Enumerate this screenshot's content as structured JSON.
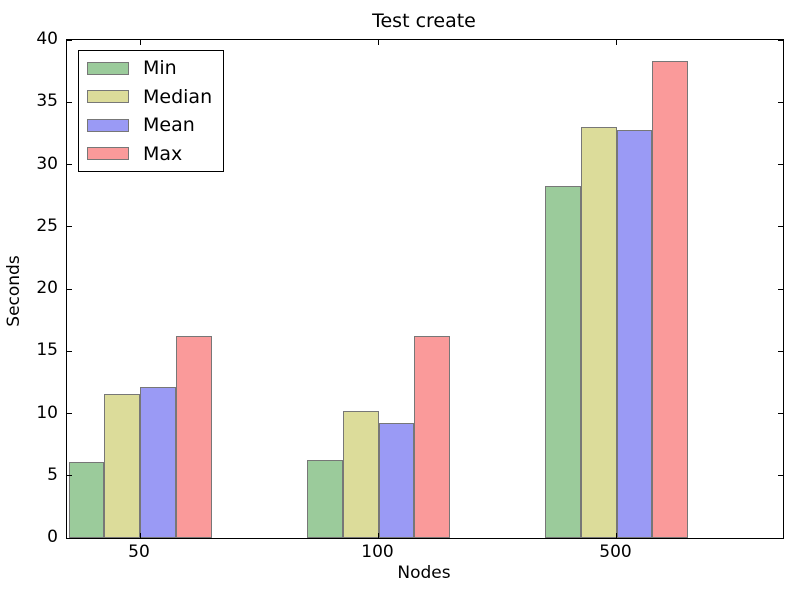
{
  "chart_data": {
    "type": "bar",
    "title": "Test create",
    "xlabel": "Nodes",
    "ylabel": "Seconds",
    "categories": [
      "50",
      "100",
      "500"
    ],
    "series": [
      {
        "name": "Min",
        "color": "#9bcb9b",
        "values": [
          6.1,
          6.3,
          28.3
        ]
      },
      {
        "name": "Median",
        "color": "#dcdc9a",
        "values": [
          11.6,
          10.2,
          33.0
        ]
      },
      {
        "name": "Mean",
        "color": "#9a9af5",
        "values": [
          12.1,
          9.2,
          32.8
        ]
      },
      {
        "name": "Max",
        "color": "#fa9a9a",
        "values": [
          16.2,
          16.2,
          38.3
        ]
      }
    ],
    "ylim": [
      0,
      40
    ],
    "yticks": [
      0,
      5,
      10,
      15,
      20,
      25,
      30,
      35,
      40
    ],
    "legend": {
      "entries": [
        "Min",
        "Median",
        "Mean",
        "Max"
      ],
      "position": "upper-left"
    },
    "grid": false,
    "edge_color": "#777777",
    "background": "#ffffff"
  }
}
